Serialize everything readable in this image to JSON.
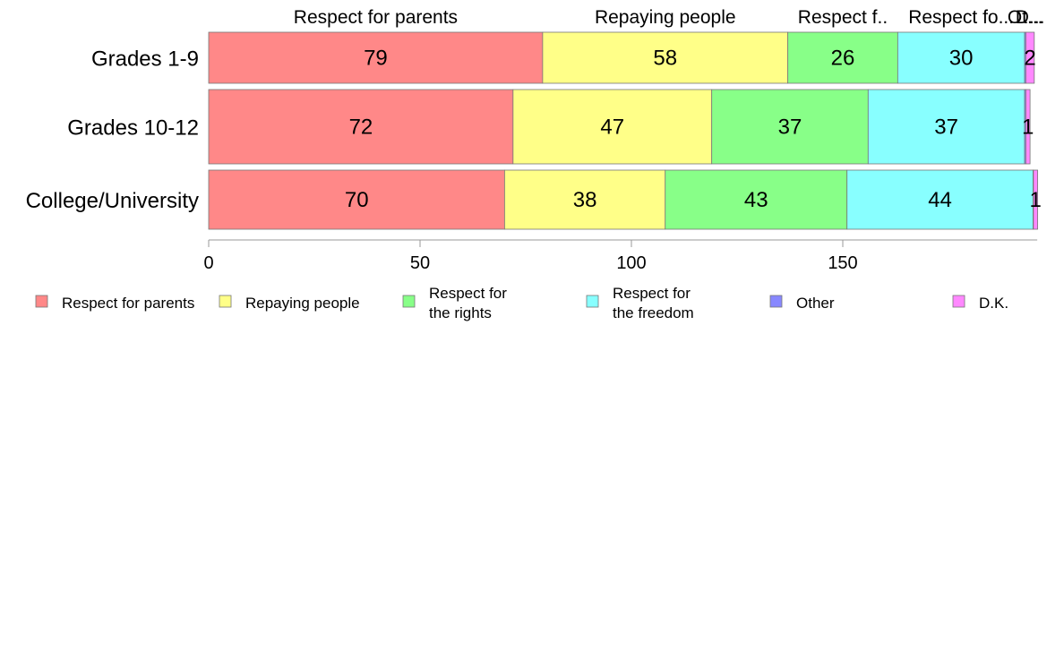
{
  "chart_data": {
    "type": "bar",
    "orientation": "horizontal",
    "stacked": true,
    "categories": [
      "Grades 1-9",
      "Grades 10-12",
      "College/University"
    ],
    "series": [
      {
        "name": "Respect for parents",
        "legend_label": "Respect for parents",
        "top_label": "Respect for parents",
        "color": "#ff8888",
        "values": [
          79,
          72,
          70
        ],
        "value_labels": [
          "79",
          "72",
          "70"
        ]
      },
      {
        "name": "Repaying people",
        "legend_label": "Repaying people",
        "top_label": "Repaying people",
        "color": "#ffff88",
        "values": [
          58,
          47,
          38
        ],
        "value_labels": [
          "58",
          "47",
          "38"
        ]
      },
      {
        "name": "Respect for the rights",
        "legend_label": "Respect for\nthe rights",
        "top_label": "Respect f..",
        "color": "#88ff88",
        "values": [
          26,
          37,
          43
        ],
        "value_labels": [
          "26",
          "37",
          "43"
        ]
      },
      {
        "name": "Respect for the freedom",
        "legend_label": "Respect for\nthe freedom",
        "top_label": "Respect fo...",
        "color": "#88ffff",
        "values": [
          30,
          37,
          44
        ],
        "value_labels": [
          "30",
          "37",
          "44"
        ]
      },
      {
        "name": "Other",
        "legend_label": "Other",
        "top_label": "Ot...",
        "color": "#8888ff",
        "values": [
          0.3,
          0.3,
          0.1
        ],
        "value_labels": [
          "",
          "",
          ""
        ]
      },
      {
        "name": "D.K.",
        "legend_label": "D.K.",
        "top_label": "D...",
        "color": "#ff88ff",
        "values": [
          2,
          1,
          1
        ],
        "value_labels": [
          "2",
          "1",
          "1"
        ]
      }
    ],
    "xlim": [
      0,
      196
    ],
    "xticks": [
      0,
      50,
      100,
      150
    ],
    "xtick_labels": [
      "0",
      "50",
      "100",
      "150"
    ],
    "title": "",
    "xlabel": "",
    "ylabel": "",
    "grid": false,
    "legend_position": "bottom"
  }
}
